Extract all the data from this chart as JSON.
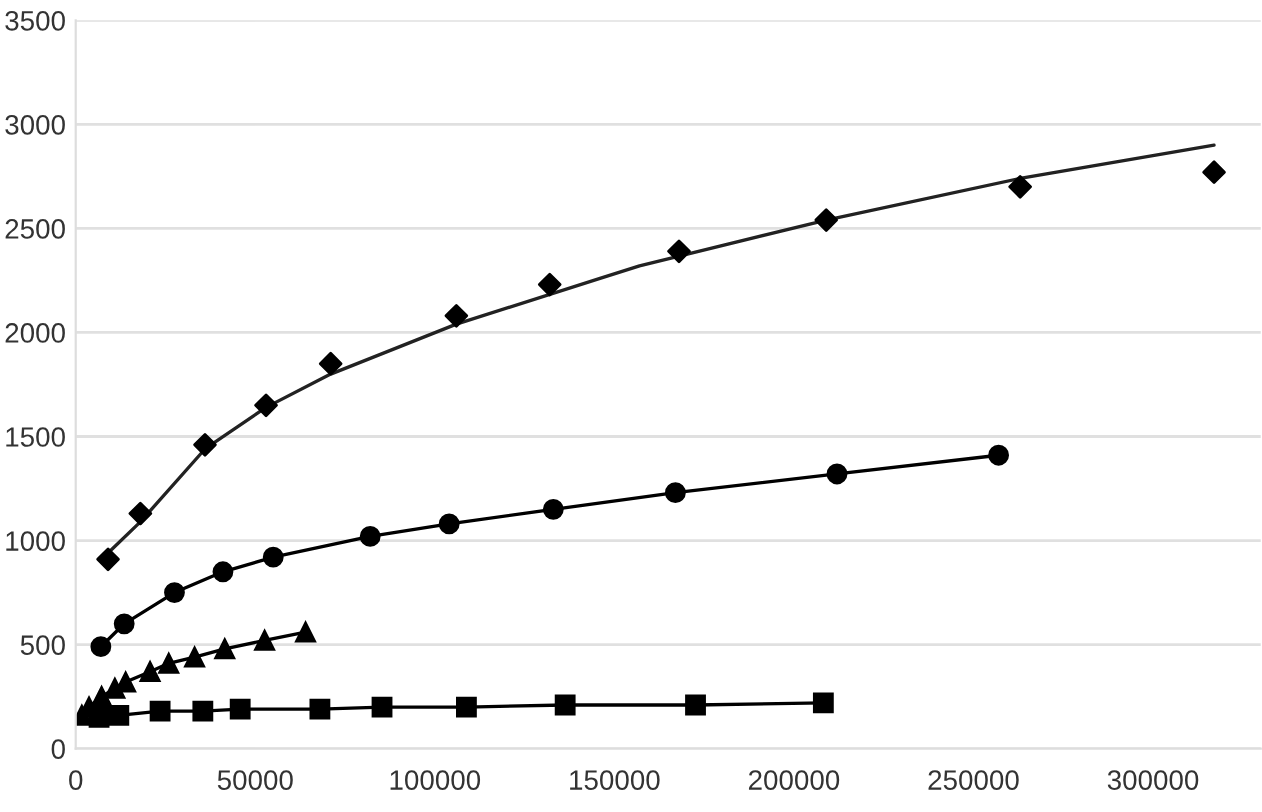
{
  "chart_data": {
    "type": "line",
    "xlim": [
      0,
      330000
    ],
    "ylim": [
      0,
      3500
    ],
    "xticks": [
      0,
      50000,
      100000,
      150000,
      200000,
      250000,
      300000
    ],
    "yticks": [
      0,
      500,
      1000,
      1500,
      2000,
      2500,
      3000,
      3500
    ],
    "grid": "y",
    "legend": false,
    "series": [
      {
        "type": "scatter",
        "marker": "diamond",
        "color": "#000000",
        "x": [
          9000,
          18000,
          36000,
          53000,
          71000,
          106000,
          132000,
          168000,
          209000,
          263000,
          317000
        ],
        "values": [
          910,
          1130,
          1460,
          1650,
          1850,
          2080,
          2230,
          2390,
          2540,
          2700,
          2770
        ]
      },
      {
        "marker": "none",
        "color": "#222222",
        "x": [
          9000,
          18000,
          36000,
          53000,
          71000,
          106000,
          146000,
          157000,
          209000,
          263000,
          317000
        ],
        "values": [
          940,
          1090,
          1440,
          1640,
          1800,
          2040,
          2260,
          2320,
          2540,
          2740,
          2900
        ]
      },
      {
        "marker": "circle",
        "color": "#000000",
        "x": [
          7000,
          13500,
          27500,
          41000,
          55000,
          82000,
          104000,
          133000,
          167000,
          212000,
          257000
        ],
        "values": [
          490,
          600,
          750,
          850,
          920,
          1020,
          1080,
          1150,
          1230,
          1320,
          1410
        ]
      },
      {
        "marker": "triangle",
        "color": "#000000",
        "x": [
          1700,
          3700,
          7200,
          10900,
          13900,
          20700,
          25900,
          33100,
          41500,
          52600,
          64000
        ],
        "values": [
          160,
          200,
          250,
          290,
          320,
          370,
          410,
          440,
          480,
          520,
          560
        ]
      },
      {
        "marker": "square",
        "color": "#000000",
        "x": [
          6500,
          12000,
          23500,
          35400,
          45800,
          68000,
          85300,
          108800,
          136300,
          172600,
          208200
        ],
        "values": [
          150,
          160,
          180,
          180,
          190,
          190,
          200,
          200,
          210,
          210,
          220
        ]
      }
    ]
  }
}
